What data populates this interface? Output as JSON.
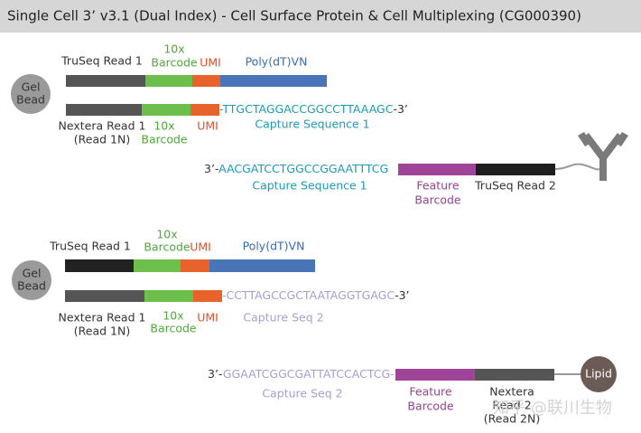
{
  "header": {
    "title": "Single Cell 3’ v3.1 (Dual Index) - Cell Surface Protein & Cell Multiplexing (CG000390)"
  },
  "section_1": {
    "bead": [
      "Gel",
      "Bead"
    ],
    "top_strand": {
      "truseq_read_1": "TruSeq Read 1",
      "barcode": [
        "10x",
        "Barcode"
      ],
      "umi": "UMI",
      "poly_dt": "Poly(dT)VN"
    },
    "bottom_strand": {
      "nextera_read_1": [
        "Nextera Read 1",
        "(Read 1N)"
      ],
      "barcode": [
        "10x",
        "Barcode"
      ],
      "umi": "UMI",
      "sequence": "-TTGCTAGGACCGGCCTTAAAGC",
      "end": "-3’",
      "capture": "Capture Sequence 1"
    },
    "feature_strand": {
      "start": "3’-",
      "sequence": "AACGATCCTGGCCGGAATTTCG",
      "capture": "Capture Sequence 1",
      "feature_barcode": [
        "Feature",
        "Barcode"
      ],
      "truseq_read_2": "TruSeq Read 2"
    }
  },
  "section_2": {
    "bead": [
      "Gel",
      "Bead"
    ],
    "top_strand": {
      "truseq_read_1": "TruSeq Read 1",
      "barcode": [
        "10x",
        "Barcode"
      ],
      "umi": "UMI",
      "poly_dt": "Poly(dT)VN"
    },
    "bottom_strand": {
      "nextera_read_1": [
        "Nextera Read 1",
        "(Read 1N)"
      ],
      "barcode": [
        "10x",
        "Barcode"
      ],
      "umi": "UMI",
      "sequence": "-CCTTAGCCGCTAATAGGTGAGC",
      "end": "-3’",
      "capture": "Capture Seq 2"
    },
    "feature_strand": {
      "start": "3’-",
      "sequence": "GGAATCGGCGATTATCCACTCG-",
      "capture": "Capture Seq 2",
      "feature_barcode": [
        "Feature",
        "Barcode"
      ],
      "nextera_read_2": [
        "Nextera",
        "Read 2",
        "(Read 2N)"
      ],
      "lipid": "Lipid"
    }
  },
  "watermark": "知乎 @联川生物"
}
